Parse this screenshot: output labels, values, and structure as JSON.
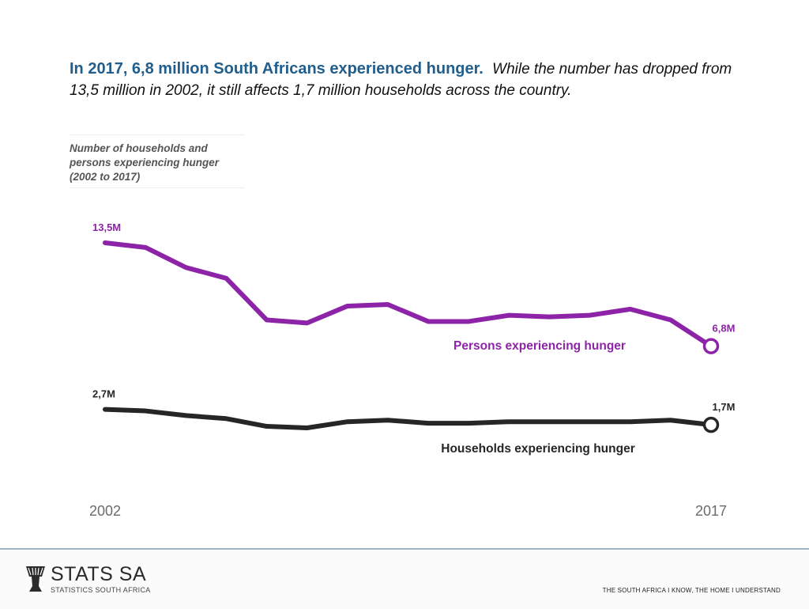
{
  "headline": {
    "lead": "In 2017, 6,8 million South Africans experienced hunger.",
    "rest": "While the number has dropped from 13,5 million in 2002, it still affects 1,7 million households across the country."
  },
  "chart_data": {
    "type": "line",
    "title": "Number of households and persons experiencing hunger (2002 to 2017)",
    "x": [
      2002,
      2003,
      2004,
      2005,
      2006,
      2007,
      2008,
      2009,
      2010,
      2011,
      2012,
      2013,
      2014,
      2015,
      2016,
      2017
    ],
    "x_tick_labels": [
      "2002",
      "2017"
    ],
    "ylim": [
      0,
      15
    ],
    "series": [
      {
        "name": "Persons experiencing hunger",
        "color": "#8d24a8",
        "values": [
          13.5,
          13.2,
          11.9,
          11.2,
          8.5,
          8.3,
          9.4,
          9.5,
          8.4,
          8.4,
          8.8,
          8.7,
          8.8,
          9.2,
          8.5,
          6.8
        ],
        "start_label": "13,5M",
        "end_label": "6,8M"
      },
      {
        "name": "Households experiencing hunger",
        "color": "#262626",
        "values": [
          2.7,
          2.6,
          2.3,
          2.1,
          1.6,
          1.5,
          1.9,
          2.0,
          1.8,
          1.8,
          1.9,
          1.9,
          1.9,
          1.9,
          2.0,
          1.7
        ],
        "start_label": "2,7M",
        "end_label": "1,7M"
      }
    ]
  },
  "footer": {
    "logo_name": "STATS SA",
    "logo_sub": "STATISTICS SOUTH AFRICA",
    "tagline": "THE SOUTH AFRICA I KNOW, THE HOME I UNDERSTAND"
  }
}
